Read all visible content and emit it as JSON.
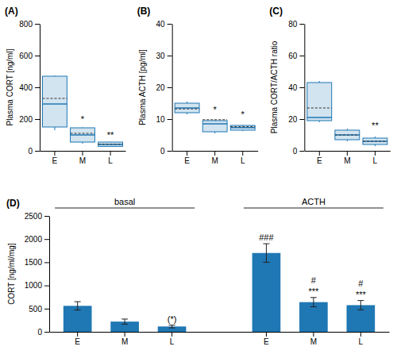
{
  "chart_data": [
    {
      "type": "box",
      "title": "(A)",
      "y_label": "Plasma CORT [ng/ml]",
      "categories": [
        "E",
        "M",
        "L"
      ],
      "boxes": [
        {
          "q1": 150,
          "median": 295,
          "q3": 470,
          "mean": 330,
          "whislo": 130,
          "whishi": 475
        },
        {
          "q1": 55,
          "median": 100,
          "q3": 145,
          "mean": 110,
          "whislo": 45,
          "whishi": 148
        },
        {
          "q1": 28,
          "median": 40,
          "q3": 55,
          "mean": 42,
          "whislo": 25,
          "whishi": 57
        }
      ],
      "annotations": [
        {
          "text": "*",
          "x": 1,
          "y": 168
        },
        {
          "text": "**",
          "x": 2,
          "y": 70
        }
      ],
      "ylim": [
        0,
        800
      ],
      "yticks": [
        0,
        200,
        400,
        600,
        800
      ]
    },
    {
      "type": "box",
      "title": "(B)",
      "y_label": "Plasma ACTH [pg/ml]",
      "categories": [
        "E",
        "M",
        "L"
      ],
      "boxes": [
        {
          "q1": 12.0,
          "median": 13.5,
          "q3": 15.0,
          "mean": 13.2,
          "whislo": 11.5,
          "whishi": 15.5
        },
        {
          "q1": 6.0,
          "median": 8.5,
          "q3": 9.5,
          "mean": 9.8,
          "whislo": 5.5,
          "whishi": 9.8
        },
        {
          "q1": 6.5,
          "median": 7.3,
          "q3": 8.0,
          "mean": 7.6,
          "whislo": 6.2,
          "whishi": 8.2
        }
      ],
      "annotations": [
        {
          "text": "*",
          "x": 1,
          "y": 11.5
        },
        {
          "text": "*",
          "x": 2,
          "y": 9.8
        }
      ],
      "ylim": [
        0,
        40
      ],
      "yticks": [
        0,
        10,
        20,
        30,
        40
      ]
    },
    {
      "type": "box",
      "title": "(C)",
      "y_label": "Plasma CORT/ACTH ratio",
      "categories": [
        "E",
        "M",
        "L"
      ],
      "boxes": [
        {
          "q1": 19,
          "median": 21,
          "q3": 43,
          "mean": 27,
          "whislo": 18,
          "whishi": 44
        },
        {
          "q1": 7,
          "median": 10,
          "q3": 13,
          "mean": 10,
          "whislo": 6,
          "whishi": 14
        },
        {
          "q1": 4,
          "median": 6,
          "q3": 8,
          "mean": 6,
          "whislo": 3,
          "whishi": 9
        }
      ],
      "annotations": [
        {
          "text": "**",
          "x": 2,
          "y": 13
        }
      ],
      "ylim": [
        0,
        80
      ],
      "yticks": [
        0,
        20,
        40,
        60,
        80
      ]
    },
    {
      "type": "bar",
      "title": "(D)",
      "y_label": "CORT [ng/ml/mg]",
      "groups": [
        {
          "label": "basal",
          "categories": [
            "E",
            "M",
            "L"
          ],
          "values": [
            560,
            220,
            115
          ],
          "errors": [
            90,
            55,
            30
          ]
        },
        {
          "label": "ACTH",
          "categories": [
            "E",
            "M",
            "L"
          ],
          "values": [
            1700,
            640,
            575
          ],
          "errors": [
            200,
            100,
            100
          ]
        }
      ],
      "annotations": [
        {
          "text": "(*)",
          "group": 0,
          "x": 2,
          "y": 165
        },
        {
          "text": "###",
          "group": 1,
          "x": 0,
          "y": 1925
        },
        {
          "text": "***",
          "group": 1,
          "x": 1,
          "y": 765
        },
        {
          "text": "#",
          "group": 1,
          "x": 1,
          "y": 875
        },
        {
          "text": "***",
          "group": 1,
          "x": 2,
          "y": 700
        },
        {
          "text": "#",
          "group": 1,
          "x": 2,
          "y": 810
        }
      ],
      "ylim": [
        0,
        2500
      ],
      "yticks": [
        0,
        500,
        1000,
        1500,
        2000,
        2500
      ]
    }
  ]
}
